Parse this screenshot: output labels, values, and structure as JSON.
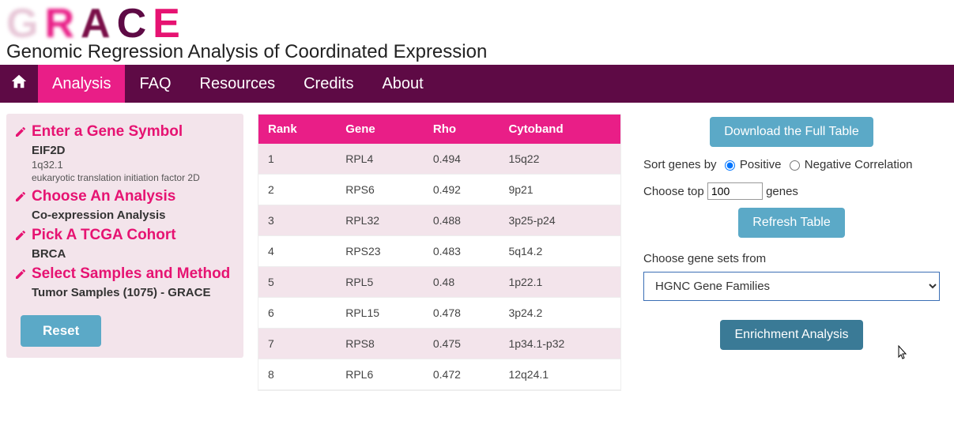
{
  "header": {
    "logo_letters": {
      "g": "G",
      "r": "R",
      "a": "A",
      "c": "C",
      "e": "E"
    },
    "subtitle": "Genomic Regression Analysis of Coordinated Expression"
  },
  "nav": {
    "items": [
      {
        "label": "Analysis",
        "active": true
      },
      {
        "label": "FAQ",
        "active": false
      },
      {
        "label": "Resources",
        "active": false
      },
      {
        "label": "Credits",
        "active": false
      },
      {
        "label": "About",
        "active": false
      }
    ]
  },
  "sidebar": {
    "sections": [
      {
        "heading": "Enter a Gene Symbol",
        "value": "EIF2D",
        "sub1": "1q32.1",
        "sub2": "eukaryotic translation initiation factor 2D"
      },
      {
        "heading": "Choose An Analysis",
        "value": "Co-expression Analysis"
      },
      {
        "heading": "Pick A TCGA Cohort",
        "value": "BRCA"
      },
      {
        "heading": "Select Samples and Method",
        "value": "Tumor Samples (1075) - GRACE"
      }
    ],
    "reset_label": "Reset"
  },
  "table": {
    "columns": [
      "Rank",
      "Gene",
      "Rho",
      "Cytoband"
    ],
    "rows": [
      [
        "1",
        "RPL4",
        "0.494",
        "15q22"
      ],
      [
        "2",
        "RPS6",
        "0.492",
        "9p21"
      ],
      [
        "3",
        "RPL32",
        "0.488",
        "3p25-p24"
      ],
      [
        "4",
        "RPS23",
        "0.483",
        "5q14.2"
      ],
      [
        "5",
        "RPL5",
        "0.48",
        "1p22.1"
      ],
      [
        "6",
        "RPL15",
        "0.478",
        "3p24.2"
      ],
      [
        "7",
        "RPS8",
        "0.475",
        "1p34.1-p32"
      ],
      [
        "8",
        "RPL6",
        "0.472",
        "12q24.1"
      ]
    ],
    "header_bg": "#e91e87",
    "row_odd_bg": "#f3e4eb",
    "row_even_bg": "#ffffff"
  },
  "right": {
    "download_label": "Download the Full Table",
    "sort_label_prefix": "Sort genes by ",
    "sort_positive": "Positive",
    "sort_negative": "Negative Correlation",
    "sort_selected": "positive",
    "top_label_prefix": "Choose top ",
    "top_value": "100",
    "top_label_suffix": " genes",
    "refresh_label": "Refresh Table",
    "geneset_label": "Choose gene sets from",
    "geneset_selected": "HGNC Gene Families",
    "enrichment_label": "Enrichment Analysis"
  },
  "colors": {
    "navbar_bg": "#5e0a45",
    "accent_pink": "#e91e87",
    "accent_blue": "#5ba9c7",
    "accent_blue_dark": "#3a7a96",
    "sidebar_bg": "#f3e4eb"
  }
}
